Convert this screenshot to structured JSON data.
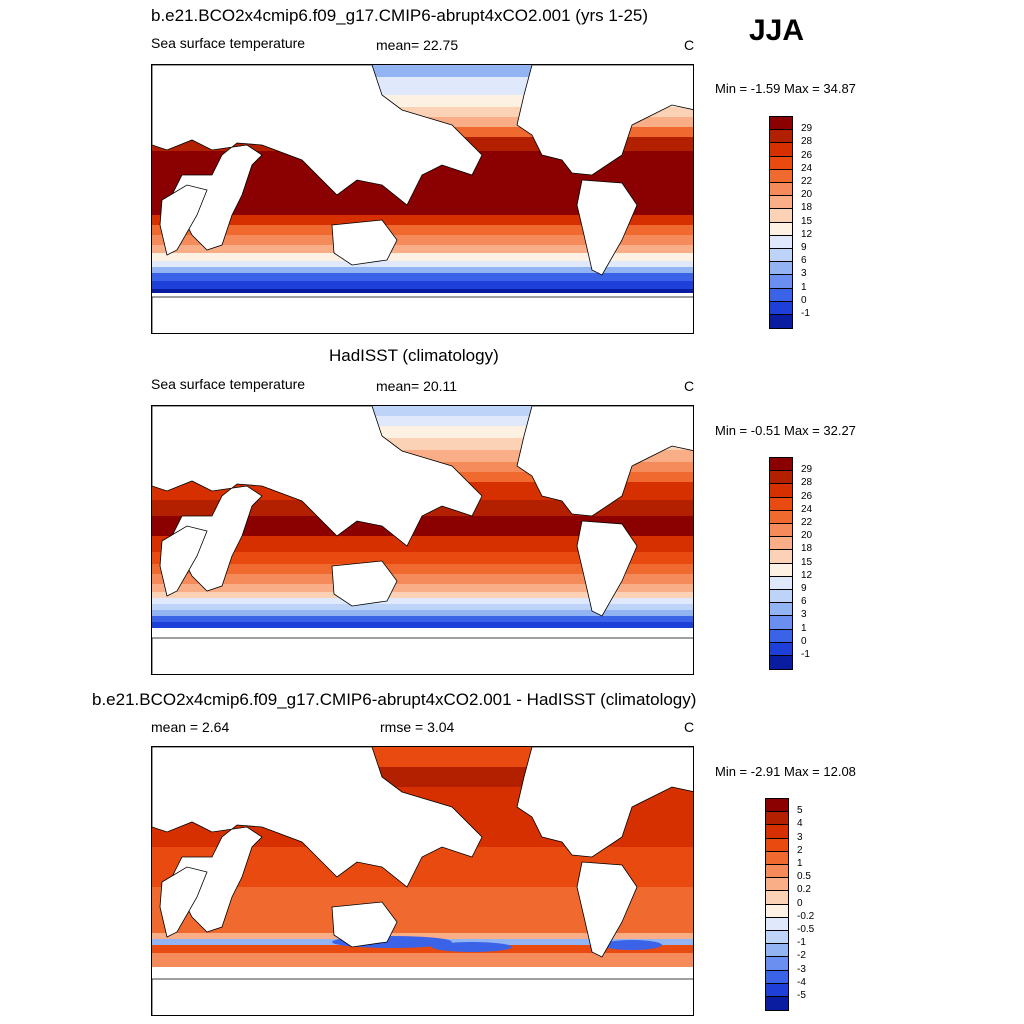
{
  "season": "JJA",
  "panels": [
    {
      "title": "b.e21.BCO2x4cmip6.f09_g17.CMIP6-abrupt4xCO2.001 (yrs 1-25)",
      "left_label": "Sea surface temperature",
      "center_label": "mean=  22.75",
      "units": "C",
      "minmax": "Min =  -1.59 Max =  34.87",
      "palette": "abs"
    },
    {
      "title": "HadISST (climatology)",
      "left_label": "Sea surface temperature",
      "center_label": "mean=  20.11",
      "units": "C",
      "minmax": "Min =  -0.51 Max =  32.27",
      "palette": "abs2"
    },
    {
      "title": "b.e21.BCO2x4cmip6.f09_g17.CMIP6-abrupt4xCO2.001 - HadISST (climatology)",
      "left_label": "mean =   2.64",
      "center_label": "rmse =   3.04",
      "units": "C",
      "minmax": "Min =  -2.91 Max =  12.08",
      "palette": "diff"
    }
  ],
  "colorbars": {
    "abs": {
      "labels": [
        "29",
        "28",
        "26",
        "24",
        "22",
        "20",
        "18",
        "15",
        "12",
        "9",
        "6",
        "3",
        "1",
        "0",
        "-1"
      ],
      "colors": [
        "#8b0000",
        "#b22000",
        "#d63000",
        "#e84a10",
        "#f06a30",
        "#f58b5a",
        "#f9ae88",
        "#fbd2b6",
        "#fdf1e4",
        "#dfe9fb",
        "#bdd3f7",
        "#93b4f2",
        "#6a8ff0",
        "#3b63e8",
        "#1f3fd9",
        "#0a1c9f"
      ]
    },
    "diff": {
      "labels": [
        "5",
        "4",
        "3",
        "2",
        "1",
        "0.5",
        "0.2",
        "0",
        "-0.2",
        "-0.5",
        "-1",
        "-2",
        "-3",
        "-4",
        "-5"
      ],
      "colors": [
        "#8b0000",
        "#b22000",
        "#d63000",
        "#e84a10",
        "#f06a30",
        "#f58b5a",
        "#f9ae88",
        "#fbd2b6",
        "#fdf1e4",
        "#dfe9fb",
        "#bdd3f7",
        "#93b4f2",
        "#6a8ff0",
        "#3b63e8",
        "#1f3fd9",
        "#0a1c9f"
      ]
    }
  }
}
